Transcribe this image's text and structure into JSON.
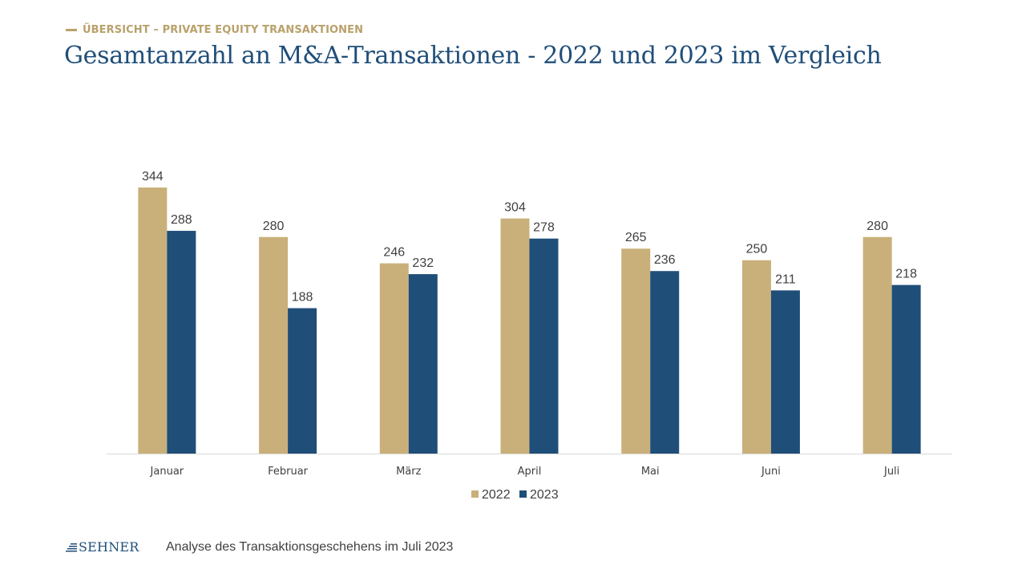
{
  "header": {
    "section_label": "ÜBERSICHT – PRIVATE EQUITY TRANSAKTIONEN",
    "title": "Gesamtanzahl an M&A-Transaktionen - 2022 und 2023 im Vergleich"
  },
  "colors": {
    "accent_gold": "#c9b07a",
    "accent_blue": "#1f4e79",
    "label_gold": "#b9a16b"
  },
  "chart_data": {
    "type": "bar",
    "title": "",
    "xlabel": "",
    "ylabel": "",
    "categories": [
      "Januar",
      "Februar",
      "März",
      "April",
      "Mai",
      "Juni",
      "Juli"
    ],
    "series": [
      {
        "name": "2022",
        "values": [
          344,
          280,
          246,
          304,
          265,
          250,
          280
        ],
        "color": "#c9b07a"
      },
      {
        "name": "2023",
        "values": [
          288,
          188,
          232,
          278,
          236,
          211,
          218
        ],
        "color": "#1f4e79"
      }
    ],
    "ylim": [
      0,
      344
    ],
    "grid": false,
    "legend_position": "bottom"
  },
  "footer": {
    "logo_text": "SEHNER",
    "logo_icon": "stairs-icon",
    "caption": "Analyse des Transaktionsgeschehens im Juli 2023"
  }
}
